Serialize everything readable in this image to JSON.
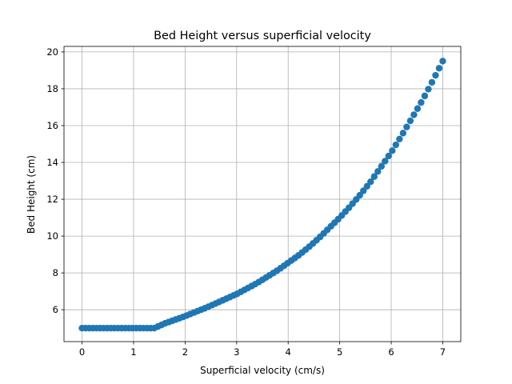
{
  "chart_data": {
    "type": "scatter",
    "title": "Bed Height versus superficial velocity",
    "xlabel": "Superficial velocity (cm/s)",
    "ylabel": "Bed Height (cm)",
    "xlim": [
      -0.35,
      7.35
    ],
    "ylim": [
      4.27,
      20.3
    ],
    "xticks": [
      0,
      1,
      2,
      3,
      4,
      5,
      6,
      7
    ],
    "yticks": [
      6,
      8,
      10,
      12,
      14,
      16,
      18,
      20
    ],
    "grid": true,
    "marker_color": "#1f77b4",
    "series": [
      {
        "x_start": 0,
        "x_end": 7.0,
        "x_step": 0.07,
        "y_flat": 5.0,
        "x_break": 1.4,
        "curve_points": [
          [
            1.4,
            5.0
          ],
          [
            1.5,
            5.12
          ],
          [
            1.6,
            5.25
          ],
          [
            1.8,
            5.45
          ],
          [
            2.0,
            5.65
          ],
          [
            2.2,
            5.88
          ],
          [
            2.4,
            6.1
          ],
          [
            2.6,
            6.35
          ],
          [
            2.8,
            6.6
          ],
          [
            3.0,
            6.85
          ],
          [
            3.2,
            7.15
          ],
          [
            3.4,
            7.45
          ],
          [
            3.6,
            7.8
          ],
          [
            3.8,
            8.15
          ],
          [
            4.0,
            8.55
          ],
          [
            4.2,
            8.95
          ],
          [
            4.4,
            9.4
          ],
          [
            4.6,
            9.9
          ],
          [
            4.8,
            10.45
          ],
          [
            5.0,
            11.0
          ],
          [
            5.2,
            11.6
          ],
          [
            5.4,
            12.25
          ],
          [
            5.6,
            12.95
          ],
          [
            5.8,
            13.75
          ],
          [
            6.0,
            14.55
          ],
          [
            6.2,
            15.45
          ],
          [
            6.4,
            16.4
          ],
          [
            6.6,
            17.35
          ],
          [
            6.8,
            18.4
          ],
          [
            7.0,
            19.5
          ]
        ]
      }
    ]
  }
}
